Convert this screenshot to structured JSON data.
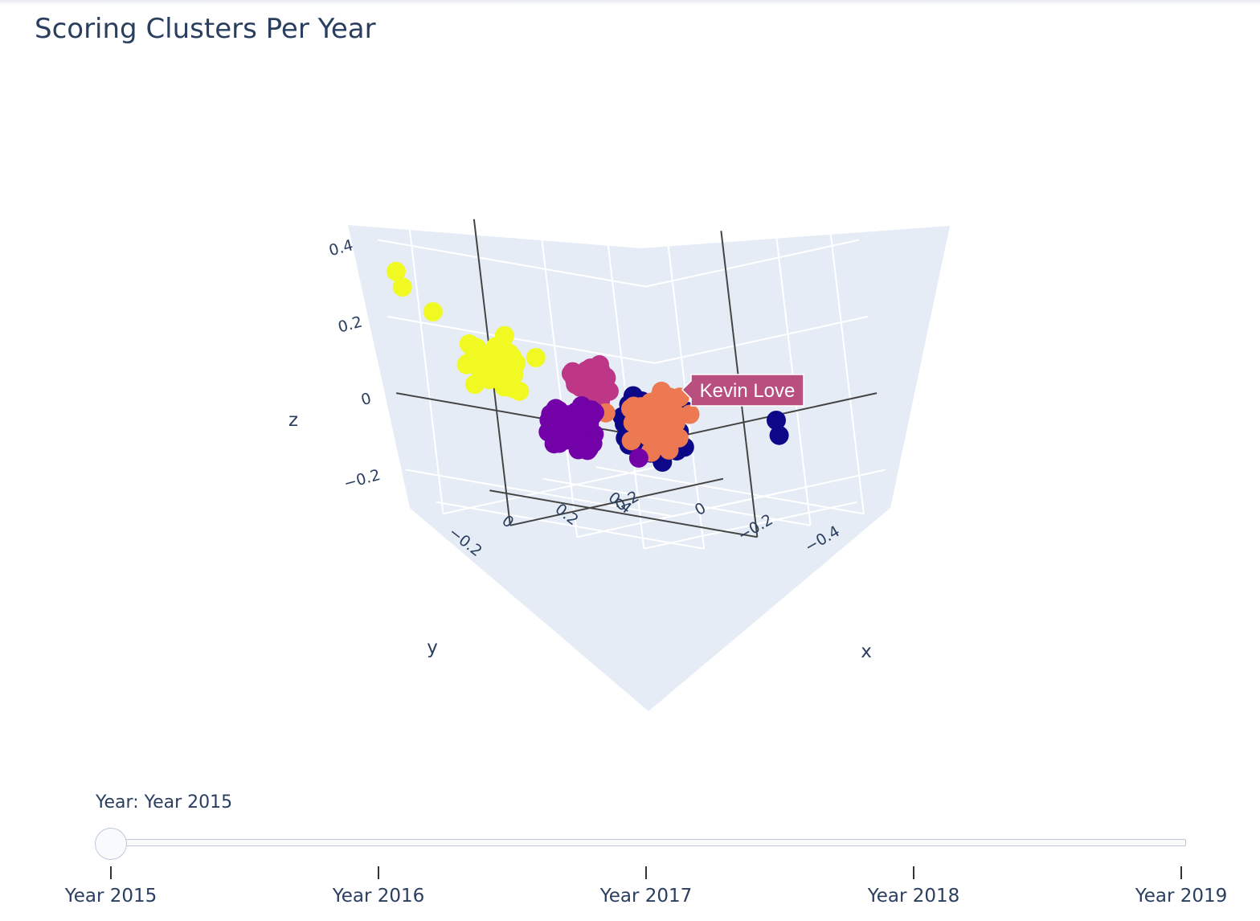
{
  "colors": {
    "navy": "#0d0887",
    "purple": "#7201a8",
    "rose": "#bd3786",
    "orange": "#ed7953",
    "yellow": "#f0f921",
    "hover_bg": "#b84f7e",
    "pane": "#e5ecf6"
  },
  "chart_data": {
    "type": "scatter",
    "mode": "3d",
    "title": "Scoring Clusters Per Year",
    "xlabel": "x",
    "ylabel": "y",
    "zlabel": "z",
    "x_ticks": [
      "−0.2",
      "0",
      "0.2",
      "0.4"
    ],
    "y_ticks": [
      "−0.4",
      "−0.2",
      "0",
      "0.2"
    ],
    "z_ticks": [
      "−0.2",
      "0",
      "0.2",
      "0.4"
    ],
    "xlim": [
      -0.3,
      0.5
    ],
    "ylim": [
      -0.5,
      0.3
    ],
    "zlim": [
      -0.3,
      0.5
    ],
    "grid": true,
    "hover_label": "Kevin Love",
    "series": [
      {
        "color": "navy",
        "center": [
          -0.2,
          -0.38,
          0.0
        ],
        "spread": [
          0.05,
          0.06,
          0.06
        ],
        "count": 70
      },
      {
        "color": "rose",
        "center": [
          -0.3,
          -0.3,
          0.12
        ],
        "spread": [
          0.04,
          0.04,
          0.04
        ],
        "count": 40
      },
      {
        "color": "orange",
        "center": [
          0.05,
          -0.2,
          -0.05
        ],
        "spread": [
          0.07,
          0.06,
          0.06
        ],
        "count": 70
      },
      {
        "color": "yellow",
        "center": [
          -0.15,
          0.1,
          0.08
        ],
        "spread": [
          0.06,
          0.07,
          0.06
        ],
        "count": 55
      },
      {
        "color": "purple",
        "center": [
          0.1,
          0.1,
          -0.12
        ],
        "spread": [
          0.05,
          0.06,
          0.05
        ],
        "count": 60
      }
    ]
  },
  "slider": {
    "current_label": "Year: Year 2015",
    "value": "Year 2015",
    "steps": [
      "Year 2015",
      "Year 2016",
      "Year 2017",
      "Year 2018",
      "Year 2019"
    ]
  }
}
